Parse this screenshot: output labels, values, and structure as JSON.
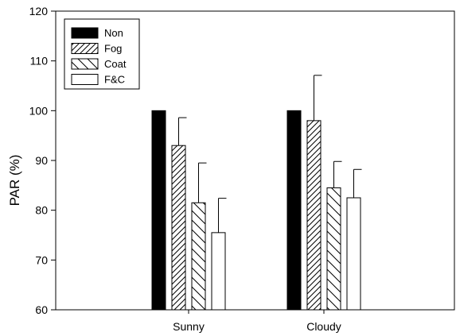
{
  "chart_data": {
    "type": "bar",
    "ylabel": "PAR (%)",
    "xlabel": "",
    "ylim": [
      60,
      120
    ],
    "yticks": [
      60,
      70,
      80,
      90,
      100,
      110,
      120
    ],
    "categories": [
      "Sunny",
      "Cloudy"
    ],
    "legend": {
      "position": "top-left"
    },
    "grid": false,
    "error_bars": "upper only",
    "series": [
      {
        "name": "Non",
        "fill": "solid-black",
        "values": [
          100,
          100
        ],
        "errors": [
          0,
          0
        ]
      },
      {
        "name": "Fog",
        "fill": "hatch-forward",
        "values": [
          93.0,
          98.0
        ],
        "errors": [
          5.6,
          9.1
        ]
      },
      {
        "name": "Coat",
        "fill": "hatch-back",
        "values": [
          81.5,
          84.5
        ],
        "errors": [
          8.0,
          5.3
        ]
      },
      {
        "name": "F&C",
        "fill": "white",
        "values": [
          75.5,
          82.5
        ],
        "errors": [
          6.9,
          5.7
        ]
      }
    ]
  }
}
